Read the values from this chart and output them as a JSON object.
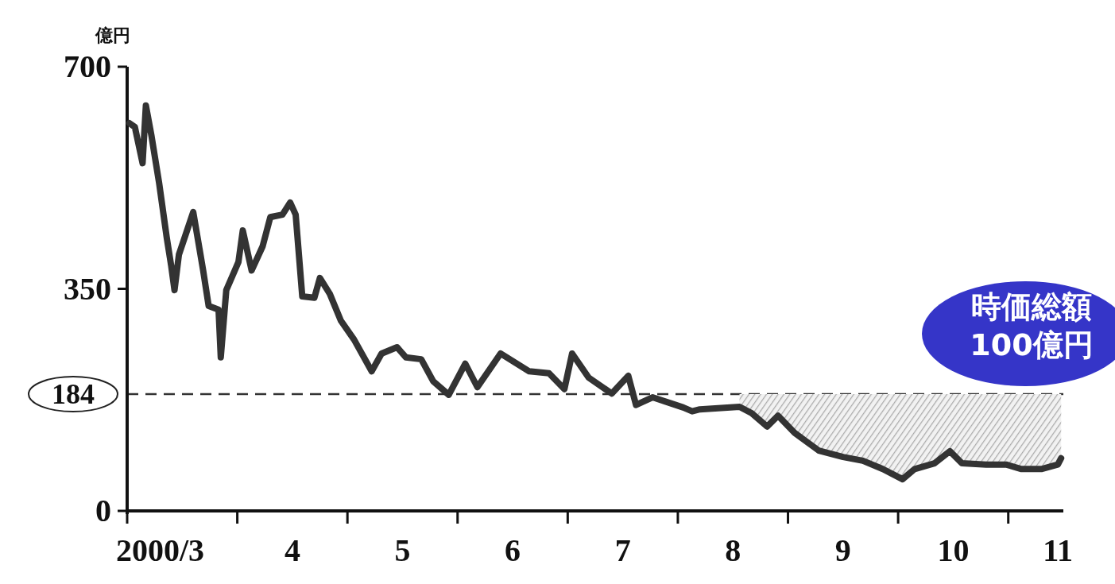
{
  "chart_data": {
    "type": "line",
    "ylabel": "億円",
    "x": [
      3.02,
      3.07,
      3.14,
      3.17,
      3.22,
      3.29,
      3.36,
      3.4,
      3.43,
      3.47,
      3.6,
      3.69,
      3.74,
      3.83,
      3.85,
      3.9,
      4.01,
      4.05,
      4.13,
      4.23,
      4.3,
      4.41,
      4.48,
      4.53,
      4.59,
      4.7,
      4.75,
      4.84,
      4.94,
      5.06,
      5.22,
      5.31,
      5.45,
      5.53,
      5.67,
      5.78,
      5.92,
      6.07,
      6.18,
      6.39,
      6.65,
      6.83,
      6.97,
      7.04,
      7.19,
      7.4,
      7.55,
      7.62,
      7.77,
      7.98,
      8.05,
      8.13,
      8.2,
      8.56,
      8.67,
      8.81,
      8.91,
      9.06,
      9.28,
      9.5,
      9.68,
      9.86,
      10.04,
      10.15,
      10.33,
      10.47,
      10.58,
      10.8,
      10.98,
      11.12,
      11.3,
      11.45,
      11.48
    ],
    "series": [
      {
        "color": "#333333",
        "values": [
          611,
          605,
          548,
          639,
          592,
          517,
          430,
          386,
          348,
          404,
          471,
          379,
          323,
          317,
          242,
          348,
          392,
          442,
          379,
          417,
          463,
          467,
          486,
          467,
          338,
          336,
          367,
          342,
          300,
          270,
          220,
          248,
          258,
          242,
          239,
          204,
          183,
          232,
          195,
          248,
          220,
          217,
          192,
          248,
          210,
          185,
          213,
          167,
          179,
          167,
          163,
          157,
          160,
          164,
          154,
          133,
          150,
          123,
          95,
          85,
          79,
          66,
          50,
          66,
          75,
          94,
          75,
          73,
          73,
          66,
          66,
          73,
          83
        ],
        "upper": [
          null,
          null,
          null,
          null,
          null,
          null,
          null,
          null,
          null,
          null,
          null,
          null,
          null,
          null,
          null,
          null,
          null,
          null,
          null,
          null,
          null,
          null,
          null,
          null,
          null,
          null,
          null,
          null,
          null,
          null,
          null,
          null,
          null,
          null,
          null,
          null,
          null,
          null,
          null,
          null,
          null,
          null,
          null,
          null,
          null,
          null,
          null,
          null,
          null,
          null,
          null,
          null,
          null,
          184,
          184,
          184,
          184,
          184,
          184,
          184,
          184,
          184,
          184,
          184,
          184,
          184,
          184,
          184,
          184,
          184,
          184,
          184,
          184
        ],
        "lower": [
          null,
          null,
          null,
          null,
          null,
          null,
          null,
          null,
          null,
          null,
          null,
          null,
          null,
          null,
          null,
          null,
          null,
          null,
          null,
          null,
          null,
          null,
          null,
          null,
          null,
          null,
          null,
          null,
          null,
          null,
          null,
          null,
          null,
          null,
          null,
          null,
          null,
          null,
          null,
          null,
          null,
          null,
          null,
          null,
          null,
          null,
          null,
          null,
          null,
          null,
          null,
          null,
          null,
          164,
          154,
          133,
          150,
          123,
          95,
          85,
          79,
          66,
          50,
          66,
          75,
          94,
          75,
          73,
          73,
          66,
          66,
          73,
          83
        ]
      }
    ],
    "xlim": [
      3,
      11.5
    ],
    "xticks": [
      {
        "value": 3,
        "label": null
      },
      {
        "value": 4,
        "label": null
      },
      {
        "value": 5,
        "label": null
      },
      {
        "value": 6,
        "label": null
      },
      {
        "value": 7,
        "label": null
      },
      {
        "value": 8,
        "label": null
      },
      {
        "value": 9,
        "label": null
      },
      {
        "value": 10,
        "label": null
      },
      {
        "value": 11,
        "label": null
      },
      {
        "value": 3.3,
        "label": "2000/3"
      },
      {
        "value": 4.5,
        "label": "4"
      },
      {
        "value": 5.5,
        "label": "5"
      },
      {
        "value": 6.5,
        "label": "6"
      },
      {
        "value": 7.5,
        "label": "7"
      },
      {
        "value": 8.5,
        "label": "8"
      },
      {
        "value": 9.5,
        "label": "9"
      },
      {
        "value": 10.5,
        "label": "10"
      },
      {
        "value": 11.45,
        "label": "11"
      }
    ],
    "ylim": [
      0,
      700
    ],
    "yticks": [
      0,
      350,
      700
    ],
    "ref_lines": [
      {
        "axis": "y",
        "value": 184,
        "label": "184",
        "line_style": "dashed",
        "color": "#333333"
      }
    ],
    "annotations": [
      "時価総額\n100億円"
    ],
    "grid": false,
    "marker": "none",
    "line_style": "solid"
  }
}
